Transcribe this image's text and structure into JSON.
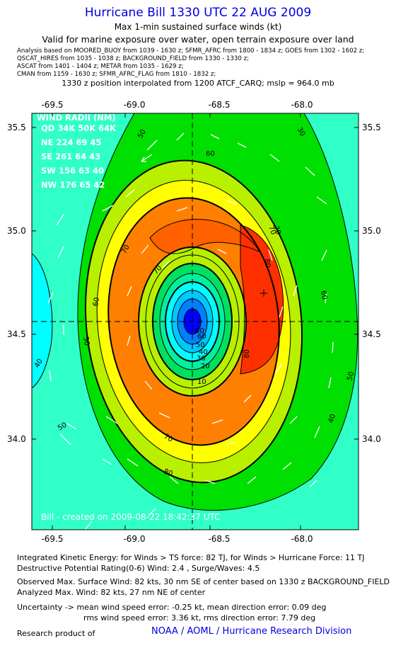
{
  "header": {
    "title": "Hurricane Bill 1330 UTC 22 AUG 2009",
    "subtitle": "Max 1-min sustained surface winds (kt)",
    "validity": "Valid for marine exposure over water, open terrain exposure over land",
    "analysis_lines": [
      "Analysis based on  MOORED_BUOY from 1039 - 1630 z;  SFMR_AFRC from 1800 - 1834 z;  GOES from 1302 - 1602 z;",
      "QSCAT_HIRES from 1035 - 1038 z;  BACKGROUND_FIELD from 1330 - 1330 z;",
      "ASCAT from 1401 - 1404 z;  METAR from 1035 - 1629 z;",
      "CMAN from 1159 - 1630 z;  SFMR_AFRC_FLAG from 1810 - 1832 z;"
    ],
    "position_line": "1330 z position interpolated from 1200 ATCF_CARQ; mslp = 964.0 mb"
  },
  "map": {
    "lon_ticks": [
      "-69.5",
      "-69.0",
      "-68.5",
      "-68.0"
    ],
    "lat_ticks": [
      "35.5",
      "35.0",
      "34.5",
      "34.0"
    ],
    "wind_radii": {
      "title": "WIND RADII (NM)",
      "header": "QD 34K 50K 64K",
      "rows": [
        "NE 224  69  45",
        "SE 261  64  43",
        "SW 156  63  40",
        "NW 176  65  42"
      ]
    },
    "contour_labels": [
      "30",
      "40",
      "50",
      "60",
      "70",
      "80",
      "70",
      "60",
      "50",
      "40",
      "30",
      "20",
      "10",
      "50",
      "60",
      "70",
      "80",
      "70",
      "80",
      "60",
      "50",
      "70",
      "60",
      "50",
      "40"
    ],
    "credit": "Bill - created on 2009-08-22 18:42:37 UTC",
    "colors": {
      "cyan": "#00ffff",
      "aquamarine": "#30ffc8",
      "green": "#00e000",
      "yellowgreen": "#b8f000",
      "yellow": "#ffff00",
      "orange": "#ff8000",
      "red": "#ff3000",
      "blue": "#0000ff"
    }
  },
  "footer": {
    "ike": "Integrated Kinetic Energy:  for Winds > TS force: 82 TJ,  for Winds > Hurricane Force: 11 TJ",
    "dpr": "Destructive Potential Rating(0-6)   Wind: 2.4 , Surge/Waves: 4.5",
    "observed": "Observed Max. Surface Wind: 82 kts, 30 nm SE of center based on 1330 z BACKGROUND_FIELD",
    "analyzed": "Analyzed Max. Wind: 82 kts, 27 nm NE of center",
    "uncert_mean": "Uncertainty -> mean wind speed error:  -0.25 kt,   mean direction error: 0.09 deg",
    "uncert_rms": "rms wind speed error: 3.36 kt,   rms direction error: 7.79 deg",
    "research": "Research product of",
    "org": "NOAA / AOML / Hurricane Research Division"
  }
}
